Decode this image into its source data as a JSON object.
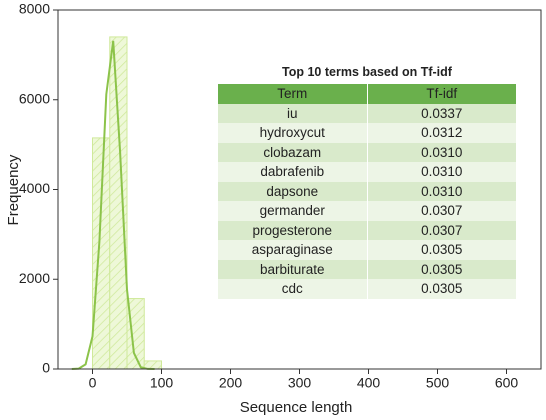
{
  "chart_data": {
    "type": "histogram",
    "xlabel": "Sequence length",
    "ylabel": "Frequency",
    "bins": [
      0,
      25,
      50,
      75,
      100
    ],
    "values": [
      5150,
      7400,
      1570,
      180
    ],
    "color": "#eef8d8",
    "edge_color": "#cfe99a",
    "curve": {
      "type": "line",
      "x": [
        -30,
        -20,
        -10,
        0,
        10,
        20,
        30,
        40,
        50,
        60,
        70,
        80,
        90
      ],
      "values": [
        1,
        8,
        104,
        727,
        2837,
        6122,
        7313,
        4833,
        1771,
        357,
        40,
        2,
        0
      ],
      "color": "#8cc34a"
    },
    "xlim": [
      -50,
      650
    ],
    "ylim": [
      0,
      8000
    ],
    "xticks": [
      0,
      100,
      200,
      300,
      400,
      500,
      600
    ],
    "yticks": [
      0,
      2000,
      4000,
      6000,
      8000
    ]
  },
  "table": {
    "title": "Top 10 terms based on Tf-idf",
    "header": [
      "Term",
      "Tf-idf"
    ],
    "rows": [
      [
        "iu",
        "0.0337"
      ],
      [
        "hydroxycut",
        "0.0312"
      ],
      [
        "clobazam",
        "0.0310"
      ],
      [
        "dabrafenib",
        "0.0310"
      ],
      [
        "dapsone",
        "0.0310"
      ],
      [
        "germander",
        "0.0307"
      ],
      [
        "progesterone",
        "0.0307"
      ],
      [
        "asparaginase",
        "0.0305"
      ],
      [
        "barbiturate",
        "0.0305"
      ],
      [
        "cdc",
        "0.0305"
      ]
    ]
  }
}
